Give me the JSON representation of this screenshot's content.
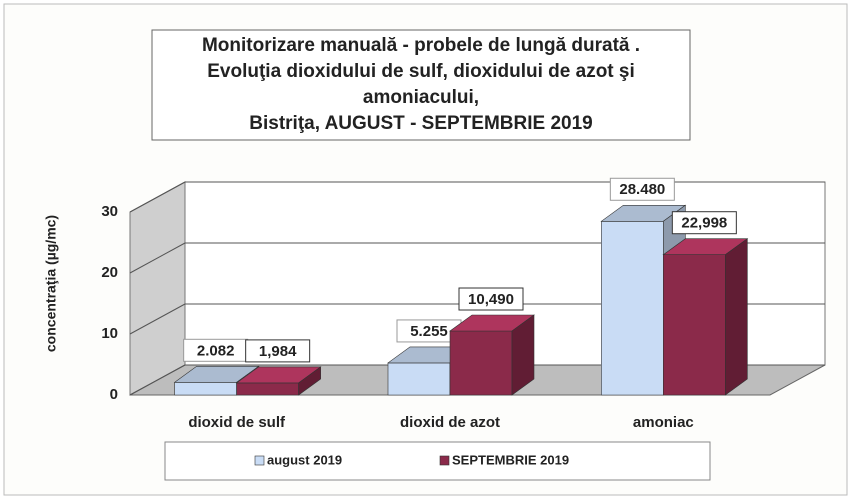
{
  "chart_data": {
    "type": "bar3d",
    "title": [
      "Monitorizare manuală - probele de lungă durată .",
      "Evoluţia dioxidului de sulf, dioxidului de azot şi",
      "amoniacului,",
      "Bistriţa,  AUGUST - SEPTEMBRIE  2019"
    ],
    "ylabel": "concentraţia (µg/mc)",
    "categories": [
      "dioxid de sulf",
      "dioxid de azot",
      "amoniac"
    ],
    "series": [
      {
        "name": "august 2019",
        "color": "#c9dcf5",
        "values": [
          2.082,
          5.255,
          28.48
        ],
        "value_labels": [
          "2.082",
          "5.255",
          "28.480"
        ]
      },
      {
        "name": "SEPTEMBRIE 2019",
        "color": "#8b2a4a",
        "values": [
          1.984,
          10.49,
          22.998
        ],
        "value_labels": [
          "1,984",
          "10,490",
          "22,998"
        ]
      }
    ],
    "ylim": [
      0,
      30
    ],
    "yticks": [
      0,
      10,
      20,
      30
    ],
    "grid": true,
    "legend": "bottom"
  }
}
